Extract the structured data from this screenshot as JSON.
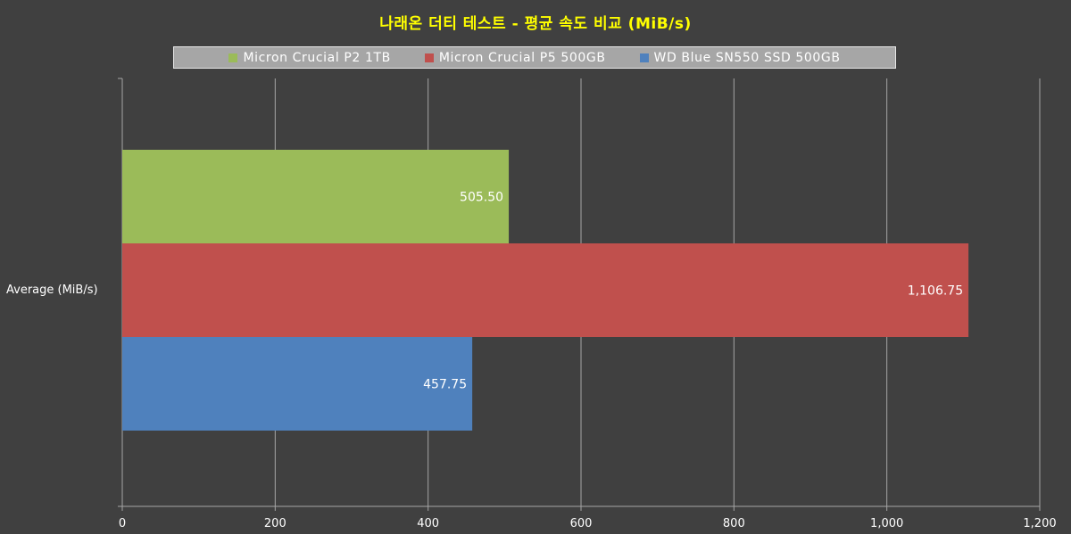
{
  "chart_data": {
    "type": "bar",
    "orientation": "horizontal",
    "title": "나래온 더티 테스트 - 평균 속도 비교 (MiB/s)",
    "categories": [
      "Average (MiB/s)"
    ],
    "series": [
      {
        "name": "Micron Crucial P2 1TB",
        "values": [
          505.5
        ],
        "label": "505.50",
        "color": "#9bbb59"
      },
      {
        "name": "Micron Crucial P5 500GB",
        "values": [
          1106.75
        ],
        "label": "1,106.75",
        "color": "#c0504d"
      },
      {
        "name": "WD Blue SN550 SSD 500GB",
        "values": [
          457.75
        ],
        "label": "457.75",
        "color": "#4f81bd"
      }
    ],
    "xlim": [
      0,
      1200
    ],
    "xticks": [
      0,
      200,
      400,
      600,
      800,
      1000,
      1200
    ],
    "xtick_labels": [
      "0",
      "200",
      "400",
      "600",
      "800",
      "1,000",
      "1,200"
    ],
    "grid": true,
    "legend_position": "top",
    "title_color": "#ffff00",
    "background_color": "#404040",
    "gridline_color": "#a6a6a6"
  }
}
